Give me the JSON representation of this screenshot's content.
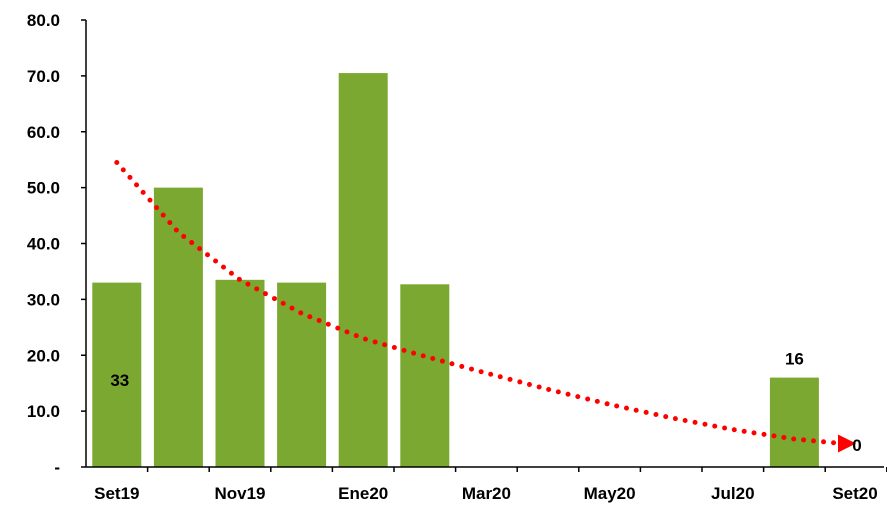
{
  "chart_data": {
    "type": "bar",
    "x_ticks": [
      "Set19",
      "Nov19",
      "Ene20",
      "Mar20",
      "May20",
      "Jul20",
      "Set20"
    ],
    "y_ticks": [
      "-",
      "10.0",
      "20.0",
      "30.0",
      "40.0",
      "50.0",
      "60.0",
      "70.0",
      "80.0"
    ],
    "ylim": [
      0,
      80
    ],
    "bars": [
      {
        "period": "Set19",
        "value": 33
      },
      {
        "period": "Oct19",
        "value": 50
      },
      {
        "period": "Nov19",
        "value": 33.5
      },
      {
        "period": "Dic19",
        "value": 33
      },
      {
        "period": "Ene20",
        "value": 70.5
      },
      {
        "period": "Feb20",
        "value": 32.7
      },
      {
        "period": "Mar20",
        "value": 0
      },
      {
        "period": "Abr20",
        "value": 0
      },
      {
        "period": "May20",
        "value": 0
      },
      {
        "period": "Jun20",
        "value": 0
      },
      {
        "period": "Jul20",
        "value": 0
      },
      {
        "period": "Ago20",
        "value": 16
      }
    ],
    "data_labels": [
      {
        "period": "Set19",
        "text": "33"
      },
      {
        "period": "Ago20",
        "text": "16"
      },
      {
        "period": "Set20",
        "text": "0"
      }
    ],
    "trend": {
      "style": "dotted-arrow",
      "color": "#ff0000",
      "points": [
        {
          "period": "Set19",
          "value": 54.5
        },
        {
          "period": "Oct19",
          "value": 42
        },
        {
          "period": "Nov19",
          "value": 33.5
        },
        {
          "period": "Dic19",
          "value": 27.5
        },
        {
          "period": "Ene20",
          "value": 23
        },
        {
          "period": "Feb20",
          "value": 19.8
        },
        {
          "period": "Mar20",
          "value": 16.8
        },
        {
          "period": "Abr20",
          "value": 13.9
        },
        {
          "period": "May20",
          "value": 11.2
        },
        {
          "period": "Jun20",
          "value": 8.8
        },
        {
          "period": "Jul20",
          "value": 6.7
        },
        {
          "period": "Ago20",
          "value": 5
        },
        {
          "period": "Set20",
          "value": 4.2
        }
      ]
    },
    "grid": false,
    "legend": "none",
    "colors": {
      "bar": "#7ba830",
      "axis": "#000000",
      "trend": "#ff0000"
    }
  }
}
